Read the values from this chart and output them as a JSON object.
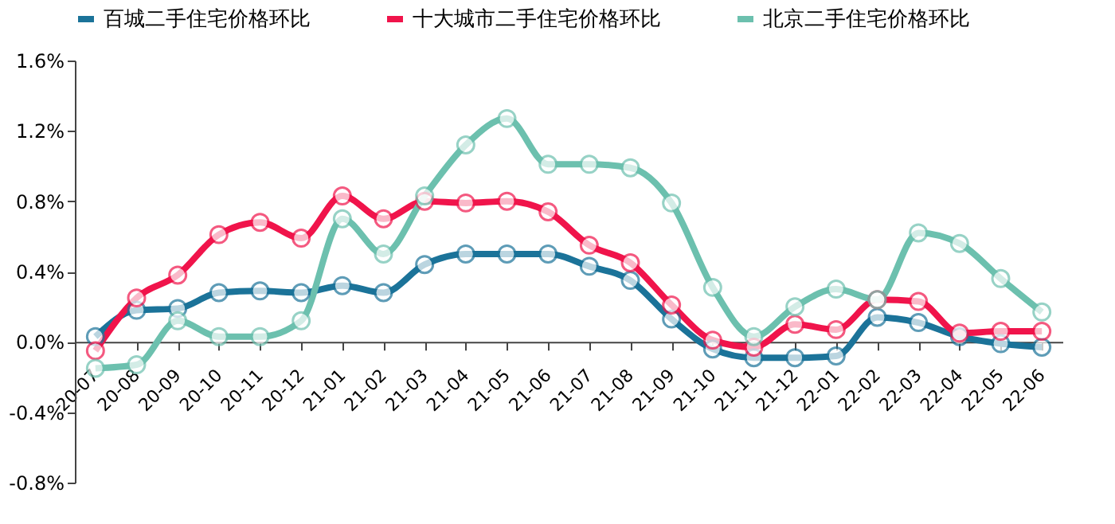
{
  "chart_data": {
    "type": "line",
    "categories": [
      "20-07",
      "20-08",
      "20-09",
      "20-10",
      "20-11",
      "20-12",
      "21-01",
      "21-02",
      "21-03",
      "21-04",
      "21-05",
      "21-06",
      "21-07",
      "21-08",
      "21-09",
      "21-10",
      "21-11",
      "21-12",
      "22-01",
      "22-02",
      "22-03",
      "22-04",
      "22-05",
      "22-06"
    ],
    "series": [
      {
        "name": "百城二手住宅价格环比",
        "color": "#1b7399",
        "values": [
          0.03,
          0.18,
          0.19,
          0.28,
          0.29,
          0.28,
          0.32,
          0.28,
          0.44,
          0.5,
          0.5,
          0.5,
          0.43,
          0.35,
          0.13,
          -0.04,
          -0.09,
          -0.09,
          -0.08,
          0.14,
          0.11,
          0.03,
          -0.01,
          -0.03
        ]
      },
      {
        "name": "十大城市二手住宅价格环比",
        "color": "#f0144b",
        "values": [
          -0.05,
          0.25,
          0.38,
          0.61,
          0.68,
          0.59,
          0.83,
          0.7,
          0.8,
          0.79,
          0.8,
          0.74,
          0.55,
          0.45,
          0.21,
          0.01,
          -0.03,
          0.1,
          0.07,
          0.24,
          0.23,
          0.05,
          0.06,
          0.06
        ]
      },
      {
        "name": "北京二手住宅价格环比",
        "color": "#6cc0ae",
        "values": [
          -0.15,
          -0.13,
          0.12,
          0.03,
          0.03,
          0.12,
          0.7,
          0.5,
          0.83,
          1.12,
          1.27,
          1.01,
          1.01,
          0.99,
          0.79,
          0.31,
          0.03,
          0.2,
          0.3,
          0.24,
          0.62,
          0.56,
          0.36,
          0.17
        ]
      }
    ],
    "ylim": [
      -0.8,
      1.6
    ],
    "yticks": [
      {
        "value": -0.8,
        "label": "-0.8%"
      },
      {
        "value": -0.4,
        "label": "-0.4%"
      },
      {
        "value": 0,
        "label": "0.0%"
      },
      {
        "value": 0.4,
        "label": "0.4%"
      },
      {
        "value": 0.8,
        "label": "0.8%"
      },
      {
        "value": 1.2,
        "label": "1.2%"
      },
      {
        "value": 1.6,
        "label": "1.6%"
      }
    ],
    "grid": false,
    "legend": "top",
    "marker": "circle",
    "line_style": "solid"
  }
}
